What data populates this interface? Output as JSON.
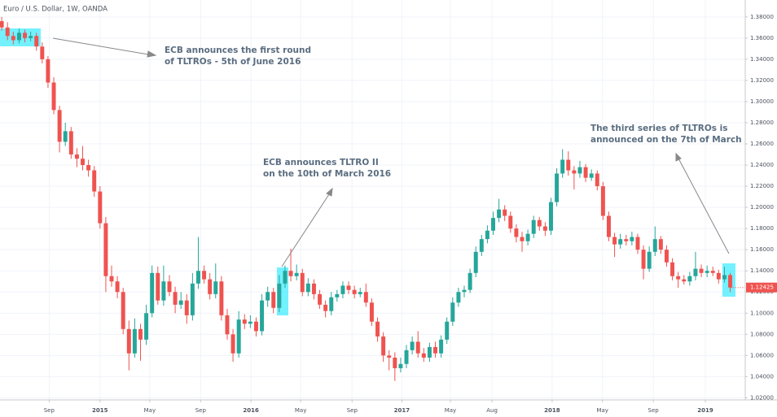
{
  "chart_data": {
    "type": "candlestick",
    "title": "Euro / U.S. Dollar, 1W, OANDA",
    "annotations": [
      [
        "ECB announces the first round",
        "of TLTROs - 5th of June 2016"
      ],
      [
        "ECB announces TLTRO II",
        "on the 10th of March 2016"
      ],
      [
        "The third series of TLTROs is",
        "announced on the 7th of March"
      ]
    ],
    "up_color": "#26a69a",
    "down_color": "#ef5350",
    "open": [
      1.376,
      1.37,
      1.362,
      1.358,
      1.365,
      1.36,
      1.362,
      1.352,
      1.34,
      1.318,
      1.292,
      1.262,
      1.272,
      1.25,
      1.246,
      1.24,
      1.235,
      1.215,
      1.185,
      1.135,
      1.13,
      1.12,
      1.085,
      1.062,
      1.085,
      1.075,
      1.1,
      1.138,
      1.112,
      1.13,
      1.12,
      1.108,
      1.112,
      1.098,
      1.128,
      1.14,
      1.132,
      1.118,
      1.13,
      1.098,
      1.08,
      1.062,
      1.094,
      1.09,
      1.092,
      1.083,
      1.112,
      1.12,
      1.105,
      1.128,
      1.14,
      1.135,
      1.138,
      1.12,
      1.128,
      1.118,
      1.108,
      1.102,
      1.115,
      1.118,
      1.126,
      1.122,
      1.118,
      1.12,
      1.11,
      1.092,
      1.078,
      1.06,
      1.058,
      1.048,
      1.052,
      1.065,
      1.073,
      1.062,
      1.058,
      1.068,
      1.062,
      1.075,
      1.092,
      1.11,
      1.12,
      1.122,
      1.138,
      1.158,
      1.17,
      1.178,
      1.19,
      1.198,
      1.192,
      1.18,
      1.172,
      1.168,
      1.175,
      1.188,
      1.182,
      1.178,
      1.205,
      1.232,
      1.245,
      1.235,
      1.232,
      1.238,
      1.228,
      1.232,
      1.22,
      1.192,
      1.172,
      1.165,
      1.17,
      1.168,
      1.172,
      1.16,
      1.142,
      1.158,
      1.17,
      1.16,
      1.148,
      1.135,
      1.132,
      1.13,
      1.135,
      1.142,
      1.138,
      1.14,
      1.138,
      1.132,
      1.136
    ],
    "high": [
      1.38,
      1.375,
      1.366,
      1.369,
      1.368,
      1.366,
      1.365,
      1.356,
      1.343,
      1.323,
      1.296,
      1.28,
      1.276,
      1.256,
      1.258,
      1.245,
      1.239,
      1.22,
      1.191,
      1.145,
      1.135,
      1.124,
      1.093,
      1.095,
      1.09,
      1.108,
      1.145,
      1.144,
      1.145,
      1.136,
      1.125,
      1.12,
      1.118,
      1.138,
      1.172,
      1.145,
      1.138,
      1.147,
      1.135,
      1.104,
      1.085,
      1.102,
      1.099,
      1.098,
      1.096,
      1.118,
      1.125,
      1.124,
      1.136,
      1.145,
      1.161,
      1.146,
      1.142,
      1.133,
      1.132,
      1.122,
      1.112,
      1.12,
      1.122,
      1.13,
      1.13,
      1.126,
      1.124,
      1.128,
      1.114,
      1.096,
      1.082,
      1.065,
      1.063,
      1.058,
      1.07,
      1.078,
      1.083,
      1.067,
      1.072,
      1.073,
      1.079,
      1.096,
      1.115,
      1.124,
      1.126,
      1.142,
      1.163,
      1.174,
      1.183,
      1.196,
      1.208,
      1.202,
      1.196,
      1.184,
      1.177,
      1.179,
      1.192,
      1.191,
      1.186,
      1.209,
      1.237,
      1.255,
      1.253,
      1.239,
      1.244,
      1.241,
      1.236,
      1.235,
      1.224,
      1.196,
      1.176,
      1.175,
      1.174,
      1.177,
      1.175,
      1.164,
      1.163,
      1.182,
      1.173,
      1.164,
      1.152,
      1.139,
      1.136,
      1.139,
      1.158,
      1.146,
      1.145,
      1.144,
      1.141,
      1.144,
      1.138
    ],
    "low": [
      1.367,
      1.358,
      1.354,
      1.355,
      1.356,
      1.357,
      1.348,
      1.336,
      1.313,
      1.288,
      1.252,
      1.258,
      1.246,
      1.238,
      1.235,
      1.229,
      1.21,
      1.18,
      1.12,
      1.125,
      1.114,
      1.08,
      1.046,
      1.058,
      1.055,
      1.07,
      1.096,
      1.108,
      1.107,
      1.116,
      1.1,
      1.104,
      1.09,
      1.093,
      1.123,
      1.128,
      1.113,
      1.114,
      1.093,
      1.075,
      1.054,
      1.058,
      1.085,
      1.086,
      1.078,
      1.079,
      1.106,
      1.1,
      1.101,
      1.124,
      1.13,
      1.131,
      1.116,
      1.116,
      1.113,
      1.104,
      1.096,
      1.098,
      1.111,
      1.114,
      1.118,
      1.114,
      1.115,
      1.106,
      1.088,
      1.073,
      1.054,
      1.046,
      1.036,
      1.044,
      1.048,
      1.061,
      1.058,
      1.054,
      1.054,
      1.058,
      1.058,
      1.071,
      1.088,
      1.106,
      1.115,
      1.119,
      1.134,
      1.154,
      1.166,
      1.174,
      1.186,
      1.187,
      1.176,
      1.167,
      1.158,
      1.164,
      1.171,
      1.178,
      1.173,
      1.174,
      1.201,
      1.228,
      1.23,
      1.217,
      1.228,
      1.224,
      1.225,
      1.216,
      1.188,
      1.168,
      1.153,
      1.161,
      1.164,
      1.164,
      1.156,
      1.132,
      1.139,
      1.154,
      1.156,
      1.144,
      1.131,
      1.124,
      1.127,
      1.126,
      1.131,
      1.134,
      1.134,
      1.135,
      1.128,
      1.129,
      1.12
    ],
    "close": [
      1.37,
      1.362,
      1.358,
      1.365,
      1.36,
      1.362,
      1.352,
      1.34,
      1.318,
      1.292,
      1.262,
      1.272,
      1.25,
      1.246,
      1.24,
      1.235,
      1.215,
      1.185,
      1.135,
      1.13,
      1.12,
      1.085,
      1.062,
      1.085,
      1.075,
      1.1,
      1.138,
      1.112,
      1.13,
      1.12,
      1.108,
      1.112,
      1.098,
      1.128,
      1.14,
      1.132,
      1.118,
      1.13,
      1.098,
      1.08,
      1.062,
      1.094,
      1.09,
      1.092,
      1.083,
      1.112,
      1.12,
      1.105,
      1.128,
      1.14,
      1.135,
      1.138,
      1.12,
      1.128,
      1.118,
      1.108,
      1.102,
      1.115,
      1.118,
      1.126,
      1.122,
      1.118,
      1.12,
      1.11,
      1.092,
      1.078,
      1.06,
      1.058,
      1.048,
      1.052,
      1.065,
      1.073,
      1.062,
      1.058,
      1.068,
      1.062,
      1.075,
      1.092,
      1.11,
      1.12,
      1.122,
      1.138,
      1.158,
      1.17,
      1.178,
      1.19,
      1.198,
      1.192,
      1.18,
      1.172,
      1.168,
      1.175,
      1.188,
      1.182,
      1.178,
      1.205,
      1.232,
      1.245,
      1.235,
      1.232,
      1.238,
      1.228,
      1.232,
      1.22,
      1.192,
      1.172,
      1.165,
      1.17,
      1.168,
      1.172,
      1.16,
      1.142,
      1.158,
      1.17,
      1.16,
      1.148,
      1.135,
      1.132,
      1.13,
      1.135,
      1.142,
      1.138,
      1.14,
      1.138,
      1.132,
      1.136,
      1.12425
    ],
    "xlim": [
      -0.3,
      128.6
    ],
    "xticks": [
      {
        "value": 8.2,
        "label": "Sep"
      },
      {
        "value": 17.0,
        "label": "2015"
      },
      {
        "value": 25.6,
        "label": "May"
      },
      {
        "value": 34.4,
        "label": "Sep"
      },
      {
        "value": 43.1,
        "label": "2016"
      },
      {
        "value": 51.7,
        "label": "May"
      },
      {
        "value": 60.6,
        "label": "Sep"
      },
      {
        "value": 69.2,
        "label": "2017"
      },
      {
        "value": 77.6,
        "label": "May"
      },
      {
        "value": 84.8,
        "label": "Aug"
      },
      {
        "value": 95.2,
        "label": "2018"
      },
      {
        "value": 103.9,
        "label": "May"
      },
      {
        "value": 112.7,
        "label": "Sep"
      },
      {
        "value": 121.7,
        "label": "2019"
      }
    ],
    "ylim": [
      1.018,
      1.396
    ],
    "yticks": [
      {
        "value": 1.02,
        "label": "1.02000"
      },
      {
        "value": 1.04,
        "label": "1.04000"
      },
      {
        "value": 1.06,
        "label": "1.06000"
      },
      {
        "value": 1.08,
        "label": "1.08000"
      },
      {
        "value": 1.1,
        "label": "1.10000"
      },
      {
        "value": 1.12,
        "label": "1.12000"
      },
      {
        "value": 1.14,
        "label": "1.14000"
      },
      {
        "value": 1.16,
        "label": "1.16000"
      },
      {
        "value": 1.18,
        "label": "1.18000"
      },
      {
        "value": 1.2,
        "label": "1.20000"
      },
      {
        "value": 1.22,
        "label": "1.22000"
      },
      {
        "value": 1.24,
        "label": "1.24000"
      },
      {
        "value": 1.26,
        "label": "1.26000"
      },
      {
        "value": 1.28,
        "label": "1.28000"
      },
      {
        "value": 1.3,
        "label": "1.30000"
      },
      {
        "value": 1.32,
        "label": "1.32000"
      },
      {
        "value": 1.34,
        "label": "1.34000"
      },
      {
        "value": 1.36,
        "label": "1.36000"
      },
      {
        "value": 1.38,
        "label": "1.38000"
      }
    ],
    "grid": true
  }
}
